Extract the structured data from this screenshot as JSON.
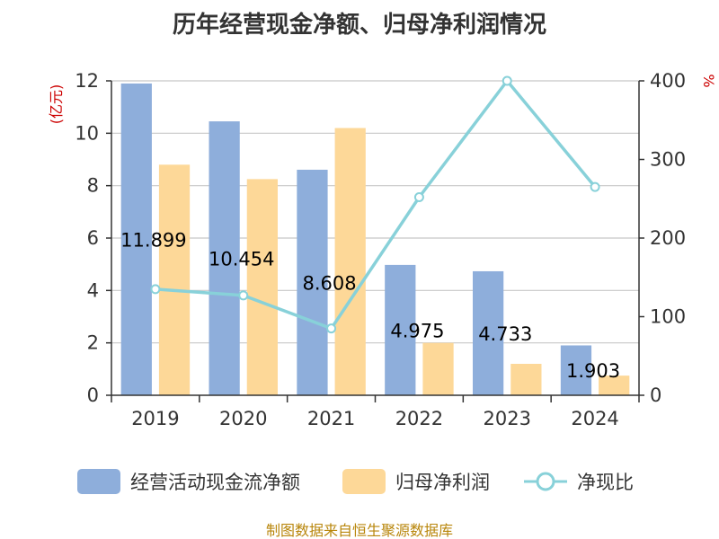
{
  "chart_data": {
    "type": "bar",
    "title": "历年经营现金净额、归母净利润情况",
    "categories": [
      "2019",
      "2020",
      "2021",
      "2022",
      "2023",
      "2024"
    ],
    "series": [
      {
        "name": "经营活动现金流净额",
        "type": "bar",
        "axis": "left",
        "color": "#8eaedb",
        "values": [
          11.899,
          10.454,
          8.608,
          4.975,
          4.733,
          1.903
        ],
        "labels": [
          "11.899",
          "10.454",
          "8.608",
          "4.975",
          "4.733",
          "1.903"
        ]
      },
      {
        "name": "归母净利润",
        "type": "bar",
        "axis": "left",
        "color": "#fdd898",
        "values": [
          8.8,
          8.25,
          10.2,
          2.0,
          1.2,
          0.75
        ]
      },
      {
        "name": "净现比",
        "type": "line",
        "axis": "right",
        "color": "#88d1d9",
        "values": [
          135,
          127,
          85,
          252,
          400,
          265
        ]
      }
    ],
    "y_left": {
      "label": "(亿元)",
      "ticks": [
        "0",
        "2",
        "4",
        "6",
        "8",
        "10",
        "12"
      ],
      "range": [
        0,
        12
      ]
    },
    "y_right": {
      "label": "%",
      "ticks": [
        "0",
        "100",
        "200",
        "300",
        "400"
      ],
      "range": [
        0,
        400
      ]
    },
    "grid": true,
    "legend_position": "bottom"
  },
  "source": "制图数据来自恒生聚源数据库"
}
